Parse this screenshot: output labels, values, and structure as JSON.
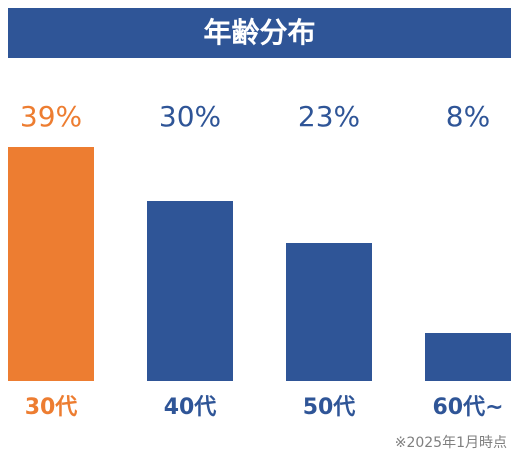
{
  "chart_data": {
    "type": "bar",
    "title": "年齢分布",
    "categories": [
      "30代",
      "40代",
      "50代",
      "60代~"
    ],
    "values": [
      39,
      30,
      23,
      8
    ],
    "value_labels": [
      "39%",
      "30%",
      "23%",
      "8%"
    ],
    "colors": [
      "#ED7D31",
      "#2F5597",
      "#2F5597",
      "#2F5597"
    ],
    "footnote": "※2025年1月時点"
  }
}
